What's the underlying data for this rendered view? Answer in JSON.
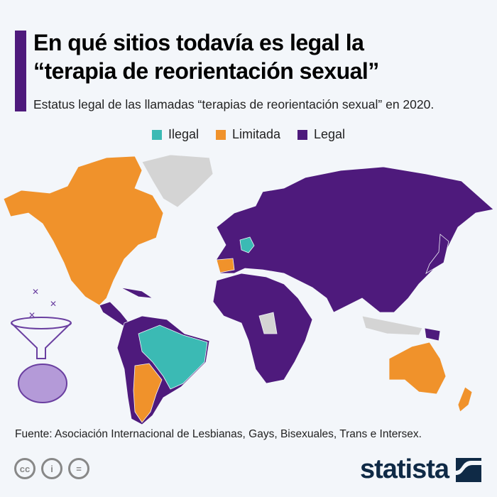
{
  "header": {
    "title_line1": "En qué sitios todavía es legal la",
    "title_line2": "“terapia de reorientación sexual”",
    "subtitle": "Estatus legal de las llamadas “terapias de reorientación sexual” en 2020."
  },
  "legend": [
    {
      "label": "Ilegal",
      "color": "#3bbab4"
    },
    {
      "label": "Limitada",
      "color": "#f0922b"
    },
    {
      "label": "Legal",
      "color": "#4e1a7c"
    }
  ],
  "colors": {
    "no_data": "#d4d4d4",
    "background": "#f3f6fa"
  },
  "footer": {
    "source": "Fuente: Asociación Internacional de Lesbianas, Gays, Bisexuales, Trans e Intersex.",
    "license_icons": [
      "cc-icon",
      "attribution-icon",
      "no-derivatives-icon"
    ],
    "brand": "statista"
  }
}
